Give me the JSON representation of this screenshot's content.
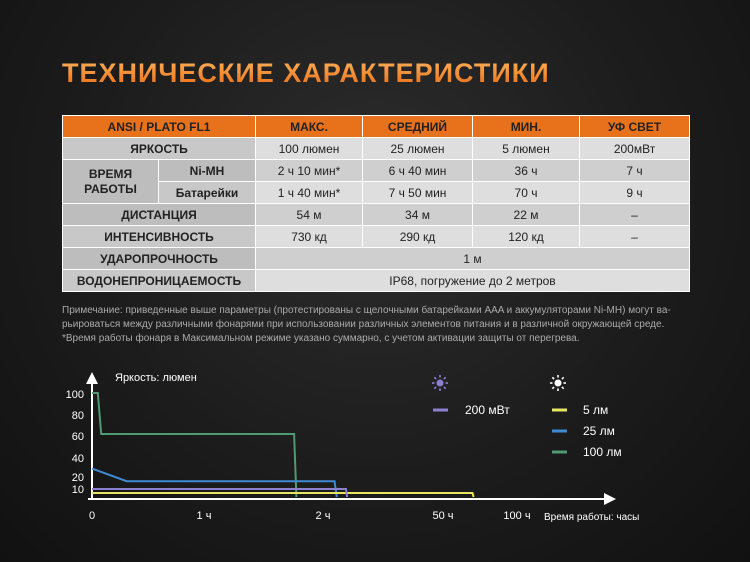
{
  "title": "ТЕХНИЧЕСКИЕ ХАРАКТЕРИСТИКИ",
  "table": {
    "headers": [
      "ANSI / PLATO FL1",
      "МАКС.",
      "СРЕДНИЙ",
      "МИН.",
      "УФ СВЕТ"
    ],
    "brightness": {
      "label": "ЯРКОСТЬ",
      "values": [
        "100 люмен",
        "25 люмен",
        "5 люмен",
        "200мВт"
      ]
    },
    "runtime": {
      "label": "ВРЕМЯ РАБОТЫ",
      "nimh": {
        "label": "Ni-MH",
        "values": [
          "2 ч 10 мин*",
          "6 ч 40 мин",
          "36 ч",
          "7 ч"
        ]
      },
      "batteries": {
        "label": "Батарейки",
        "values": [
          "1 ч 40 мин*",
          "7 ч 50 мин",
          "70 ч",
          "9 ч"
        ]
      }
    },
    "distance": {
      "label": "ДИСТАНЦИЯ",
      "values": [
        "54 м",
        "34 м",
        "22 м",
        "–"
      ]
    },
    "intensity": {
      "label": "ИНТЕНСИВНОСТЬ",
      "values": [
        "730 кд",
        "290 кд",
        "120 кд",
        "–"
      ]
    },
    "impact": {
      "label": "УДАРОПРОЧНОСТЬ",
      "value": "1 м"
    },
    "waterproof": {
      "label": "ВОДОНЕПРОНИЦАЕМОСТЬ",
      "value": "IP68, погружение до 2 метров"
    }
  },
  "note": {
    "line1": "Примечание: приведенные выше параметры (протестированы с щелочными батарейками AAA и аккумуляторами Ni-MH) могут ва-",
    "line2": "рьироваться между различными фонарями при использовании различных элементов питания и в различной окружающей среде.",
    "line3": "*Время работы фонаря в Максимальном режиме указано суммарно, с учетом активации защиты от перегрева."
  },
  "chart_data": {
    "type": "line",
    "ylabel": "Яркость: люмен",
    "xlabel": "Время работы: часы",
    "y_ticks": [
      "100",
      "80",
      "60",
      "40",
      "20",
      "10"
    ],
    "x_ticks": [
      "0",
      "1 ч",
      "2 ч",
      "50 ч",
      "100 ч"
    ],
    "legend_uv_label": "200 мВт",
    "legend_labels": [
      "5 лм",
      "25 лм",
      "100 лм"
    ],
    "series": [
      {
        "name": "100 лм",
        "color": "#4f9a72",
        "points": [
          [
            0,
            100
          ],
          [
            0.05,
            100
          ],
          [
            0.08,
            60
          ],
          [
            1.75,
            60
          ],
          [
            1.77,
            0
          ]
        ]
      },
      {
        "name": "25 лм",
        "color": "#3f8ad2",
        "points": [
          [
            0,
            27
          ],
          [
            0.3,
            16
          ],
          [
            2.1,
            16
          ],
          [
            2.12,
            0
          ]
        ]
      },
      {
        "name": "5 лм",
        "color": "#e6e660",
        "points": [
          [
            0,
            5
          ],
          [
            3.3,
            5
          ],
          [
            3.31,
            0
          ]
        ]
      },
      {
        "name": "200 мВт",
        "color": "#8b7fd0",
        "points": [
          [
            0,
            10
          ],
          [
            2.2,
            10
          ],
          [
            2.21,
            0
          ]
        ]
      }
    ],
    "colors": {
      "uv": "#8b7fd0",
      "low": "#e6e660",
      "mid": "#3f8ad2",
      "high": "#4f9a72"
    }
  }
}
